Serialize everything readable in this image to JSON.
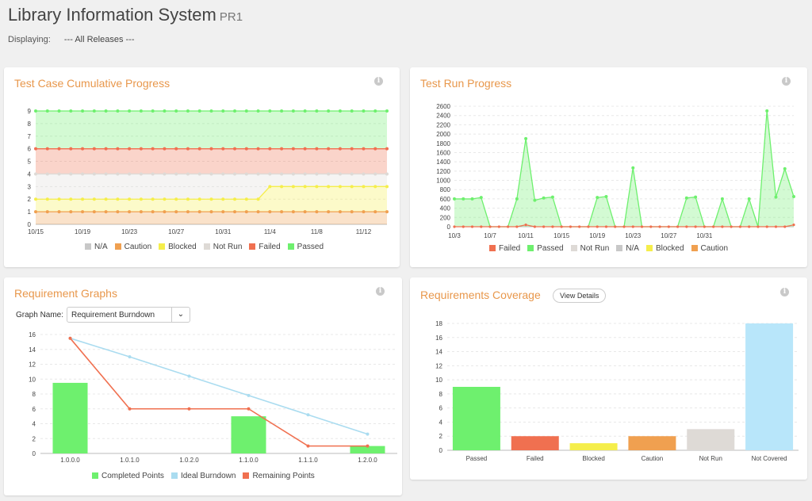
{
  "header": {
    "title": "Library Information System",
    "subtitle": "PR1",
    "displaying_label": "Displaying:",
    "displaying_value": "--- All Releases ---"
  },
  "panels": {
    "cumulative": {
      "title": "Test Case Cumulative Progress",
      "legend": [
        {
          "label": "N/A",
          "color": "#c8c8c8"
        },
        {
          "label": "Caution",
          "color": "#f0a050"
        },
        {
          "label": "Blocked",
          "color": "#f5ee4b"
        },
        {
          "label": "Not Run",
          "color": "#dedad6"
        },
        {
          "label": "Failed",
          "color": "#f07050"
        },
        {
          "label": "Passed",
          "color": "#6ef06e"
        }
      ]
    },
    "testrun": {
      "title": "Test Run Progress",
      "legend": [
        {
          "label": "Failed",
          "color": "#f07050"
        },
        {
          "label": "Passed",
          "color": "#6ef06e"
        },
        {
          "label": "Not Run",
          "color": "#dedad6"
        },
        {
          "label": "N/A",
          "color": "#c8c8c8"
        },
        {
          "label": "Blocked",
          "color": "#f5ee4b"
        },
        {
          "label": "Caution",
          "color": "#f0a050"
        }
      ]
    },
    "reqgraphs": {
      "title": "Requirement Graphs",
      "graph_name_label": "Graph Name:",
      "graph_name_value": "Requirement Burndown",
      "legend": [
        {
          "label": "Completed Points",
          "color": "#6ef06e"
        },
        {
          "label": "Ideal Burndown",
          "color": "#aadcf0"
        },
        {
          "label": "Remaining Points",
          "color": "#f07050"
        }
      ]
    },
    "coverage": {
      "title": "Requirements Coverage",
      "view_details": "View Details"
    }
  },
  "chart_data": [
    {
      "type": "area",
      "id": "cumulative",
      "x": [
        "10/15",
        "10/16",
        "10/17",
        "10/18",
        "10/19",
        "10/20",
        "10/21",
        "10/22",
        "10/23",
        "10/24",
        "10/25",
        "10/26",
        "10/27",
        "10/28",
        "10/29",
        "10/30",
        "10/31",
        "11/1",
        "11/2",
        "11/3",
        "11/4",
        "11/5",
        "11/6",
        "11/7",
        "11/8",
        "11/9",
        "11/10",
        "11/11",
        "11/12",
        "11/13",
        "11/14"
      ],
      "xticks": [
        "10/15",
        "10/19",
        "10/23",
        "10/27",
        "10/31",
        "11/4",
        "11/8",
        "11/12"
      ],
      "ylim": [
        0,
        9
      ],
      "yticks": [
        0,
        1,
        2,
        3,
        4,
        5,
        6,
        7,
        8,
        9
      ],
      "series": [
        {
          "name": "Caution",
          "values": [
            1,
            1,
            1,
            1,
            1,
            1,
            1,
            1,
            1,
            1,
            1,
            1,
            1,
            1,
            1,
            1,
            1,
            1,
            1,
            1,
            1,
            1,
            1,
            1,
            1,
            1,
            1,
            1,
            1,
            1,
            1
          ]
        },
        {
          "name": "Blocked",
          "values": [
            2,
            2,
            2,
            2,
            2,
            2,
            2,
            2,
            2,
            2,
            2,
            2,
            2,
            2,
            2,
            2,
            2,
            2,
            2,
            2,
            3,
            3,
            3,
            3,
            3,
            3,
            3,
            3,
            3,
            3,
            3
          ]
        },
        {
          "name": "Not Run",
          "values": [
            4,
            4,
            4,
            4,
            4,
            4,
            4,
            4,
            4,
            4,
            4,
            4,
            4,
            4,
            4,
            4,
            4,
            4,
            4,
            4,
            4,
            4,
            4,
            4,
            4,
            4,
            4,
            4,
            4,
            4,
            4
          ]
        },
        {
          "name": "Failed",
          "values": [
            6,
            6,
            6,
            6,
            6,
            6,
            6,
            6,
            6,
            6,
            6,
            6,
            6,
            6,
            6,
            6,
            6,
            6,
            6,
            6,
            6,
            6,
            6,
            6,
            6,
            6,
            6,
            6,
            6,
            6,
            6
          ]
        },
        {
          "name": "Passed",
          "values": [
            9,
            9,
            9,
            9,
            9,
            9,
            9,
            9,
            9,
            9,
            9,
            9,
            9,
            9,
            9,
            9,
            9,
            9,
            9,
            9,
            9,
            9,
            9,
            9,
            9,
            9,
            9,
            9,
            9,
            9,
            9
          ]
        }
      ]
    },
    {
      "type": "area",
      "id": "testrun",
      "xticks": [
        "10/3",
        "10/7",
        "10/11",
        "10/15",
        "10/19",
        "10/23",
        "10/27",
        "10/31"
      ],
      "ylim": [
        0,
        2600
      ],
      "yticks": [
        0,
        200,
        400,
        600,
        800,
        1000,
        1200,
        1400,
        1600,
        1800,
        2000,
        2200,
        2400,
        2600
      ],
      "passed": [
        600,
        600,
        600,
        630,
        0,
        0,
        0,
        600,
        1900,
        570,
        620,
        640,
        0,
        0,
        0,
        0,
        630,
        650,
        0,
        0,
        1270,
        0,
        0,
        0,
        0,
        0,
        620,
        640,
        0,
        0,
        600,
        0,
        0,
        600,
        0,
        2500,
        640,
        1250,
        650
      ],
      "failed": [
        0,
        0,
        0,
        0,
        0,
        0,
        0,
        0,
        40,
        0,
        0,
        0,
        0,
        0,
        0,
        0,
        0,
        0,
        0,
        0,
        0,
        0,
        0,
        0,
        0,
        0,
        0,
        0,
        0,
        0,
        0,
        0,
        0,
        0,
        0,
        0,
        0,
        0,
        40
      ]
    },
    {
      "type": "bar",
      "id": "burndown",
      "categories": [
        "1.0.0.0",
        "1.0.1.0",
        "1.0.2.0",
        "1.1.0.0",
        "1.1.1.0",
        "1.2.0.0"
      ],
      "ylim": [
        0,
        16
      ],
      "yticks": [
        0,
        2,
        4,
        6,
        8,
        10,
        12,
        14,
        16
      ],
      "series": [
        {
          "name": "Completed Points",
          "values": [
            9.5,
            0,
            0,
            5,
            0,
            1
          ]
        },
        {
          "name": "Ideal Burndown",
          "values": [
            15.5,
            13,
            10.4,
            7.8,
            5.2,
            2.6
          ]
        },
        {
          "name": "Remaining Points",
          "values": [
            15.5,
            6,
            6,
            6,
            1,
            1
          ]
        }
      ]
    },
    {
      "type": "bar",
      "id": "coverage",
      "categories": [
        "Passed",
        "Failed",
        "Blocked",
        "Caution",
        "Not Run",
        "Not Covered"
      ],
      "values": [
        9,
        2,
        1,
        2,
        3,
        18
      ],
      "colors": [
        "#6ef06e",
        "#f07050",
        "#f5ee4b",
        "#f0a050",
        "#dedad6",
        "#b8e6fa"
      ],
      "ylim": [
        0,
        18
      ],
      "yticks": [
        0,
        2,
        4,
        6,
        8,
        10,
        12,
        14,
        16,
        18
      ]
    }
  ]
}
